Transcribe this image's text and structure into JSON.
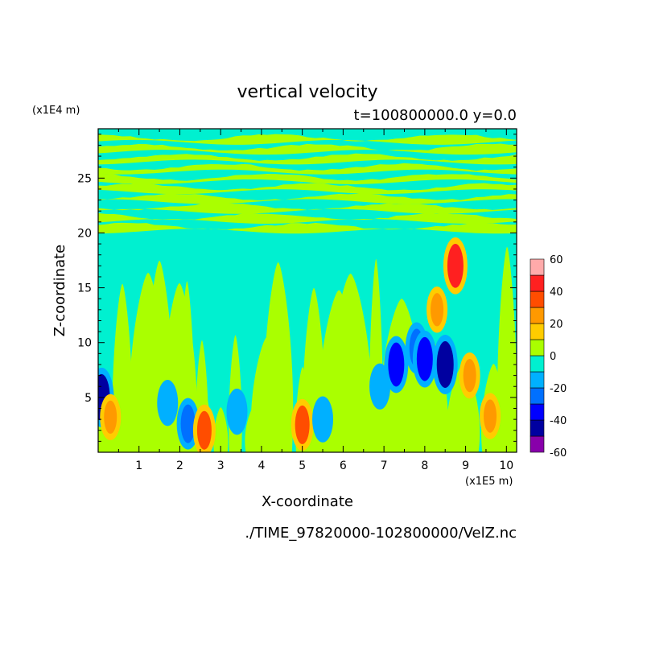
{
  "chart_data": {
    "type": "contour",
    "title": "vertical velocity",
    "subtitle": "t=100800000.0 y=0.0",
    "xlabel": "X-coordinate",
    "ylabel": "Z-coordinate",
    "x_scale_label": "(x1E5 m)",
    "y_scale_label": "(x1E4 m)",
    "xlim": [
      0,
      10.25
    ],
    "ylim": [
      0,
      29.5
    ],
    "x_ticks": [
      1,
      2,
      3,
      4,
      5,
      6,
      7,
      8,
      9,
      10
    ],
    "y_ticks": [
      5,
      10,
      15,
      20,
      25
    ],
    "colorbar": {
      "levels": [
        -60,
        -50,
        -40,
        -30,
        -20,
        -10,
        0,
        10,
        20,
        30,
        40,
        50,
        60
      ],
      "tick_labels": [
        60,
        40,
        20,
        0,
        -20,
        -40,
        -60
      ],
      "colors": [
        "#8800aa",
        "#0000a0",
        "#0000ff",
        "#0070ff",
        "#00b0ff",
        "#00f0d0",
        "#aaff00",
        "#ffcc00",
        "#ff9900",
        "#ff4d00",
        "#ff2020",
        "#ffaaaa"
      ]
    },
    "background_color": "#00f0d0",
    "features": [
      {
        "x": 0.08,
        "z": 5.0,
        "value": -45
      },
      {
        "x": 0.3,
        "z": 3.2,
        "value": 20
      },
      {
        "x": 1.7,
        "z": 4.5,
        "value": -20
      },
      {
        "x": 2.2,
        "z": 2.6,
        "value": -30
      },
      {
        "x": 2.6,
        "z": 2.0,
        "value": 30
      },
      {
        "x": 3.4,
        "z": 3.7,
        "value": -20
      },
      {
        "x": 5.0,
        "z": 2.5,
        "value": 30
      },
      {
        "x": 5.5,
        "z": 3.0,
        "value": -20
      },
      {
        "x": 6.9,
        "z": 6.0,
        "value": -20
      },
      {
        "x": 7.3,
        "z": 8.0,
        "value": -40
      },
      {
        "x": 7.8,
        "z": 9.5,
        "value": -30
      },
      {
        "x": 8.0,
        "z": 8.5,
        "value": -40
      },
      {
        "x": 8.3,
        "z": 13.0,
        "value": 20
      },
      {
        "x": 8.5,
        "z": 8.0,
        "value": -45
      },
      {
        "x": 8.75,
        "z": 17.0,
        "value": 40
      },
      {
        "x": 9.1,
        "z": 7.0,
        "value": 20
      },
      {
        "x": 9.6,
        "z": 3.3,
        "value": 20
      }
    ]
  },
  "footer": {
    "filename": "./TIME_97820000-102800000/VelZ.nc"
  }
}
